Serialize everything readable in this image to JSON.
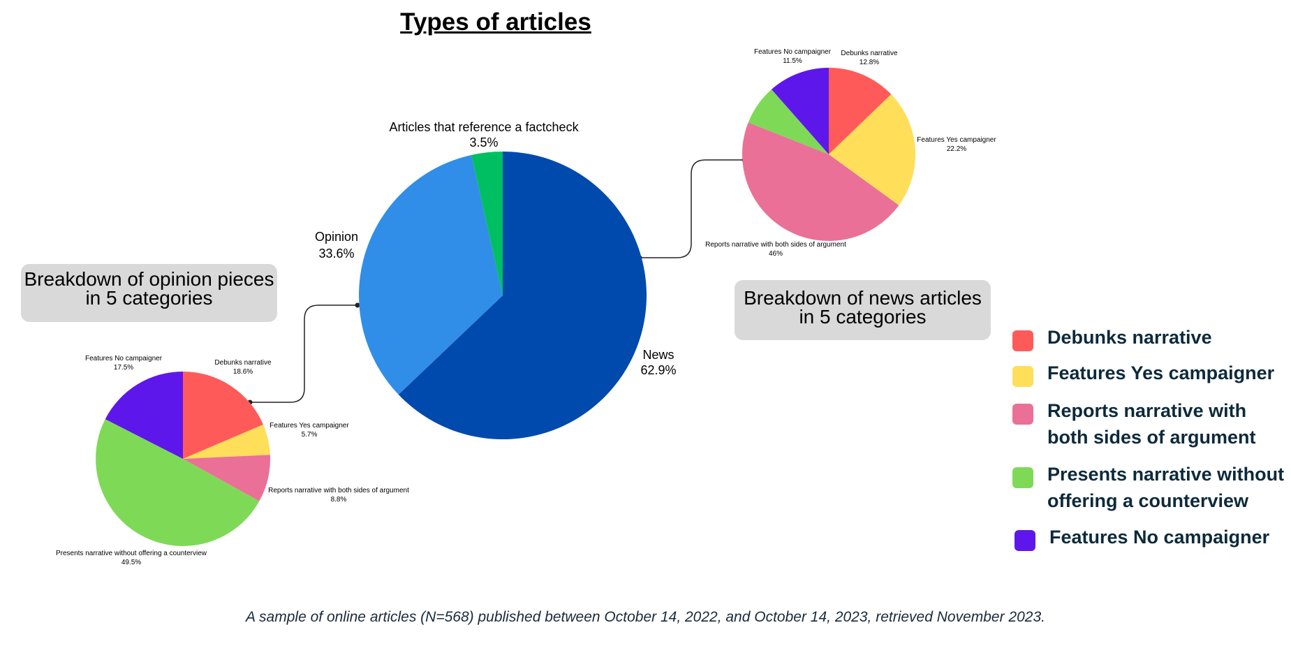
{
  "title": "Types of articles",
  "footnote": "A sample of online articles (N=568) published between October 14, 2022, and October 14, 2023, retrieved November 2023.",
  "notes": {
    "opinion_line1": "Breakdown of opinion pieces",
    "opinion_line2": "in 5 categories",
    "news_line1": "Breakdown of news articles",
    "news_line2": "in 5 categories"
  },
  "legend": [
    {
      "label": "Debunks narrative",
      "color": "#FF5A5A"
    },
    {
      "label": "Features Yes campaigner",
      "color": "#FFDE59"
    },
    {
      "label": "Reports narrative with both sides of argument",
      "color": "#EB7097"
    },
    {
      "label": "Presents narrative without offering a counterview",
      "color": "#7ED957"
    },
    {
      "label": "Features No campaigner",
      "color": "#5E17EB"
    }
  ],
  "chart_data": [
    {
      "type": "pie",
      "title": "Types of articles",
      "slices": [
        {
          "label": "News",
          "value": 62.9,
          "display": "62.9%",
          "color": "#004AAD"
        },
        {
          "label": "Opinion",
          "value": 33.6,
          "display": "33.6%",
          "color": "#308EE8"
        },
        {
          "label": "Articles that reference a factcheck",
          "value": 3.5,
          "display": "3.5%",
          "color": "#00BF63"
        }
      ]
    },
    {
      "type": "pie",
      "title": "Breakdown of opinion pieces in 5 categories",
      "slices": [
        {
          "label": "Debunks narrative",
          "value": 18.6,
          "display": "18.6%",
          "color": "#FF5A5A"
        },
        {
          "label": "Features Yes campaigner",
          "value": 5.7,
          "display": "5.7%",
          "color": "#FFDE59"
        },
        {
          "label": "Reports narrative with both sides of argument",
          "value": 8.8,
          "display": "8.8%",
          "color": "#EB7097"
        },
        {
          "label": "Presents narrative without offering a counterview",
          "value": 49.5,
          "display": "49.5%",
          "color": "#7ED957"
        },
        {
          "label": "Features No campaigner",
          "value": 17.5,
          "display": "17.5%",
          "color": "#5E17EB"
        }
      ]
    },
    {
      "type": "pie",
      "title": "Breakdown of news articles in 5 categories",
      "slices": [
        {
          "label": "Debunks narrative",
          "value": 12.8,
          "display": "12.8%",
          "color": "#FF5A5A"
        },
        {
          "label": "Features Yes campaigner",
          "value": 22.2,
          "display": "22.2%",
          "color": "#FFDE59"
        },
        {
          "label": "Reports narrative with both sides of argument",
          "value": 46,
          "display": "46%",
          "color": "#EB7097"
        },
        {
          "label": "Presents narrative without offering a counterview",
          "value": 7.5,
          "display": "",
          "color": "#7ED957"
        },
        {
          "label": "Features No campaigner",
          "value": 11.5,
          "display": "11.5%",
          "color": "#5E17EB"
        }
      ]
    }
  ]
}
